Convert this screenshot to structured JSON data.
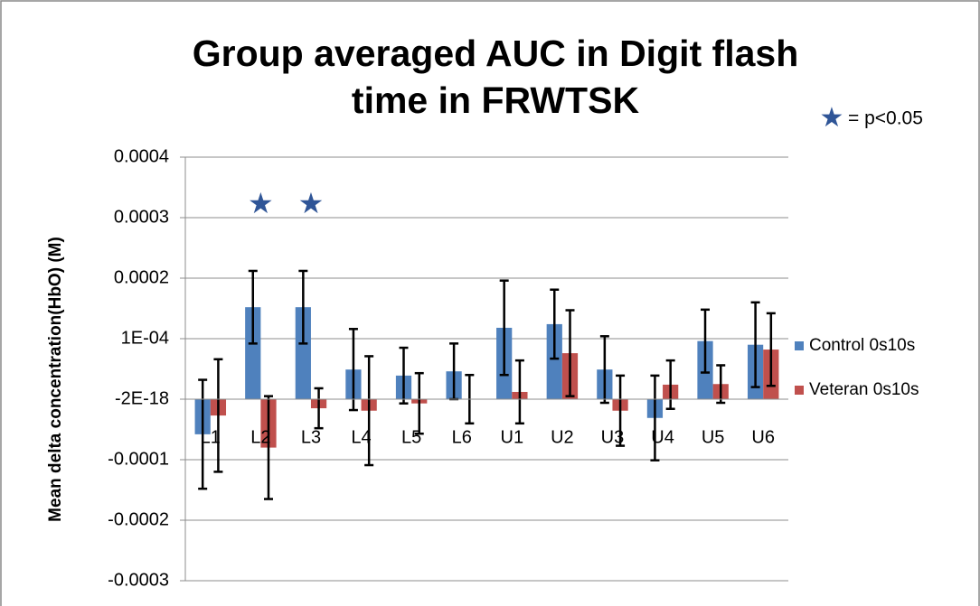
{
  "chart_data": {
    "type": "bar",
    "title": "Group averaged AUC in Digit flash time in FRWTSK",
    "y_label": "Mean delta concentration(HbO) (M)",
    "annotation": "= p<0.05",
    "categories": [
      "L1",
      "L2",
      "L3",
      "L4",
      "L5",
      "L6",
      "U1",
      "U2",
      "U3",
      "U4",
      "U5",
      "U6"
    ],
    "significant": [
      false,
      true,
      true,
      false,
      false,
      false,
      false,
      false,
      false,
      false,
      false,
      false
    ],
    "series": [
      {
        "name": "Control 0s10s",
        "color": "#4f81bd",
        "values": [
          -5.8e-05,
          0.000152,
          0.000152,
          4.9e-05,
          3.9e-05,
          4.6e-05,
          0.000118,
          0.000124,
          4.9e-05,
          -3.1e-05,
          9.6e-05,
          9e-05
        ],
        "errors": [
          9e-05,
          6e-05,
          6e-05,
          6.7e-05,
          4.6e-05,
          4.6e-05,
          7.8e-05,
          5.7e-05,
          5.5e-05,
          7e-05,
          5.2e-05,
          7e-05
        ]
      },
      {
        "name": "Veteran 0s10s",
        "color": "#c0504d",
        "values": [
          -2.7e-05,
          -8e-05,
          -1.5e-05,
          -1.9e-05,
          -7e-06,
          0,
          1.2e-05,
          7.6e-05,
          -1.9e-05,
          2.4e-05,
          2.5e-05,
          8.2e-05
        ],
        "errors": [
          9.3e-05,
          8.5e-05,
          3.3e-05,
          9e-05,
          5e-05,
          4e-05,
          5.2e-05,
          7.1e-05,
          5.8e-05,
          4e-05,
          3.1e-05,
          6e-05
        ]
      }
    ],
    "ylim": [
      -0.0003,
      0.0004
    ],
    "yticks": [
      -0.0003,
      -0.0002,
      -0.0001,
      {
        "value": -2e-18,
        "label": "-2E-18"
      },
      {
        "value": 0.0001,
        "label": "1E-04"
      },
      0.0002,
      0.0003,
      0.0004
    ],
    "grid": true,
    "legend": "right"
  }
}
